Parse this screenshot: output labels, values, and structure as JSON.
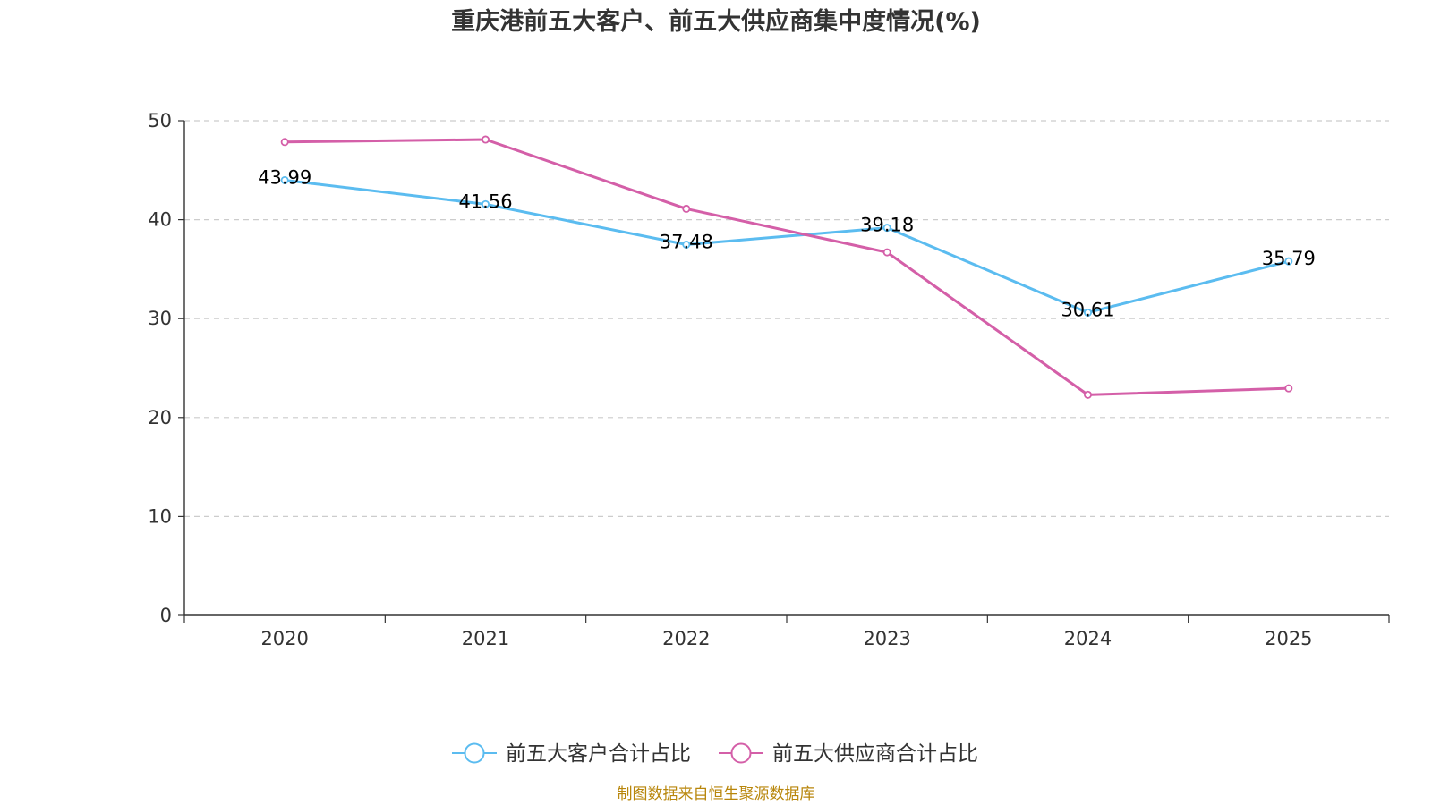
{
  "chart_data": {
    "type": "line",
    "title": "重庆港前五大客户、前五大供应商集中度情况(%)",
    "categories": [
      "2020",
      "2021",
      "2022",
      "2023",
      "2024",
      "2025"
    ],
    "ylim": [
      0,
      50
    ],
    "yticks": [
      0,
      10,
      20,
      30,
      40,
      50
    ],
    "grid": true,
    "legend_position": "bottom-center",
    "series": [
      {
        "name": "前五大客户合计占比",
        "color": "#5bbcf0",
        "values": [
          43.99,
          41.56,
          37.48,
          39.18,
          30.61,
          35.79
        ],
        "labels": [
          "43.99",
          "41.56",
          "37.48",
          "39.18",
          "30.61",
          "35.79"
        ],
        "show_labels": true
      },
      {
        "name": "前五大供应商合计占比",
        "color": "#d45fa8",
        "values": [
          47.85,
          48.1,
          41.1,
          36.7,
          22.3,
          22.95
        ],
        "labels": [],
        "show_labels": false
      }
    ],
    "source": "制图数据来自恒生聚源数据库"
  }
}
